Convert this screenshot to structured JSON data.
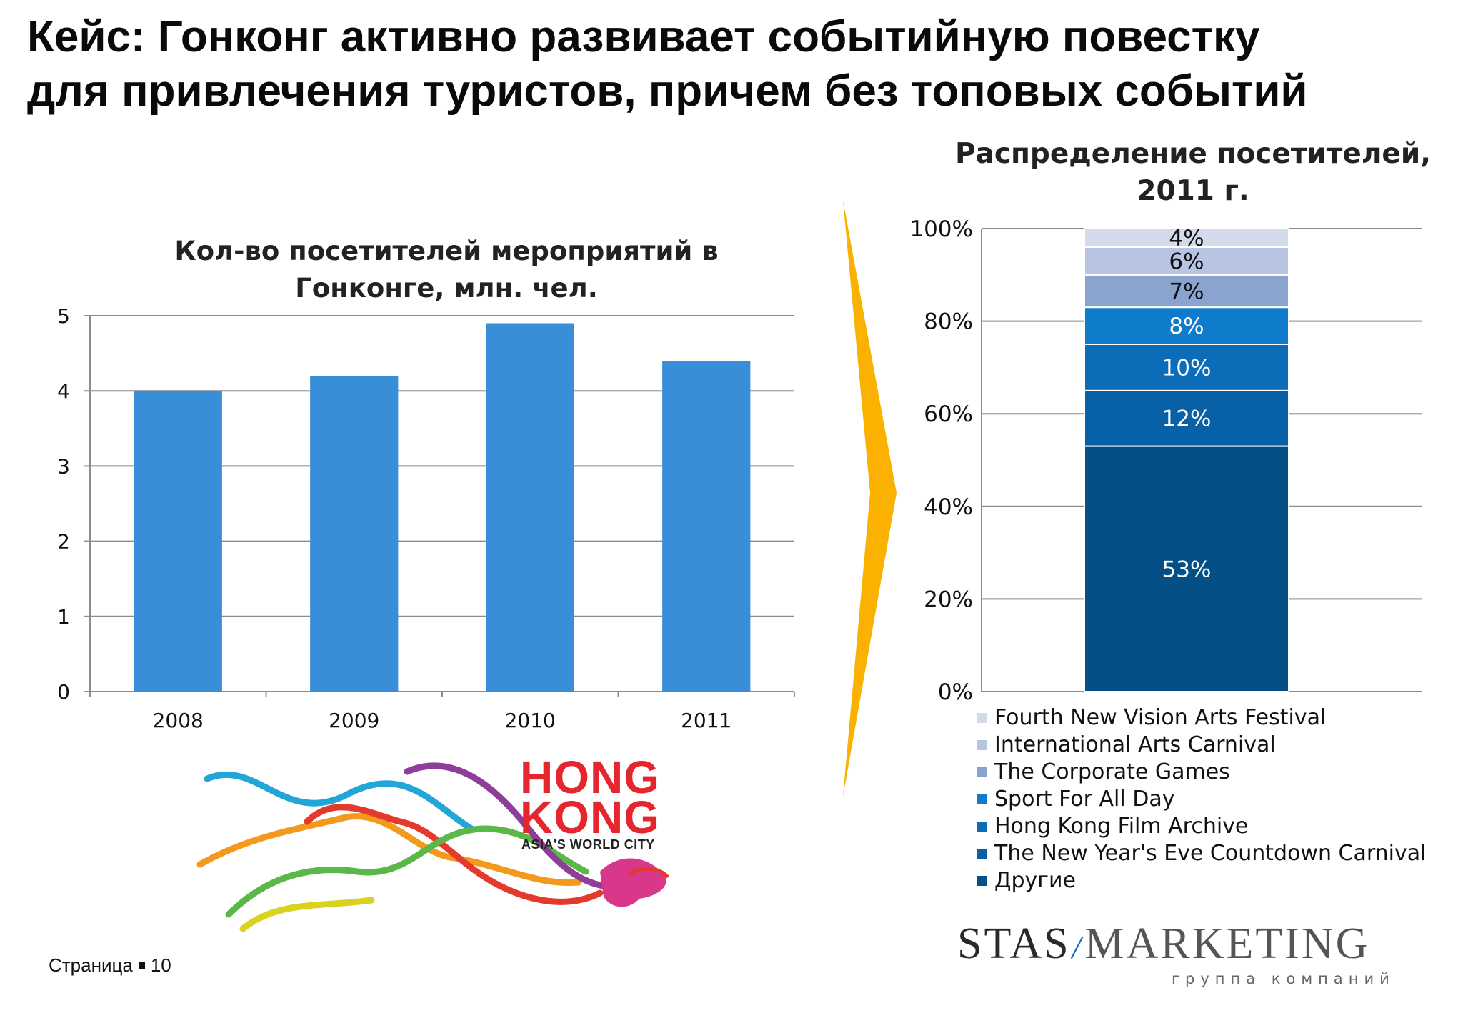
{
  "slide": {
    "title_line1": "Кейс: Гонконг активно развивает событийную повестку",
    "title_line2": "для привлечения туристов, причем без топовых событий",
    "footer_label": "Страница",
    "page_number": "10"
  },
  "colors": {
    "bar_blue": "#388fd7",
    "arrow": "#fbb100",
    "grid": "#8c8c8c"
  },
  "logos": {
    "hk_line1": "HONG",
    "hk_line2": "KONG",
    "hk_tagline": "ASIA'S WORLD CITY",
    "company_part1": "STAS",
    "company_part2": "MARKETING",
    "company_sub": "группа компаний"
  },
  "chart_data": [
    {
      "type": "bar",
      "title": "Кол-во посетителей мероприятий в Гонконге, млн. чел.",
      "title_line1": "Кол-во посетителей мероприятий в",
      "title_line2": "Гонконге, млн. чел.",
      "categories": [
        "2008",
        "2009",
        "2010",
        "2011"
      ],
      "values": [
        4.0,
        4.2,
        4.9,
        4.4
      ],
      "yticks": [
        0,
        1,
        2,
        3,
        4,
        5
      ],
      "ylim": [
        0,
        5
      ],
      "xlabel": "",
      "ylabel": "",
      "grid": true
    },
    {
      "type": "bar",
      "stacked": true,
      "title": "Распределение посетителей, 2011 г.",
      "title_line1": "Распределение посетителей,",
      "title_line2": "2011 г.",
      "yticks": [
        "0%",
        "20%",
        "40%",
        "60%",
        "80%",
        "100%"
      ],
      "ylim": [
        0,
        100
      ],
      "grid": true,
      "legend_position": "bottom",
      "series": [
        {
          "name": "Другие",
          "value": 53,
          "label": "53%",
          "color": "#054f87"
        },
        {
          "name": "The New Year's Eve Countdown Carnival",
          "value": 12,
          "label": "12%",
          "color": "#0861a6"
        },
        {
          "name": "Hong Kong Film Archive",
          "value": 10,
          "label": "10%",
          "color": "#0b6cb8"
        },
        {
          "name": "Sport For All Day",
          "value": 8,
          "label": "8%",
          "color": "#0f7ccb"
        },
        {
          "name": "The Corporate Games",
          "value": 7,
          "label": "7%",
          "color": "#8aa4cf"
        },
        {
          "name": "International Arts Carnival",
          "value": 6,
          "label": "6%",
          "color": "#b7c5e2"
        },
        {
          "name": "Fourth New Vision Arts Festival",
          "value": 4,
          "label": "4%",
          "color": "#d3dae9"
        }
      ]
    }
  ]
}
